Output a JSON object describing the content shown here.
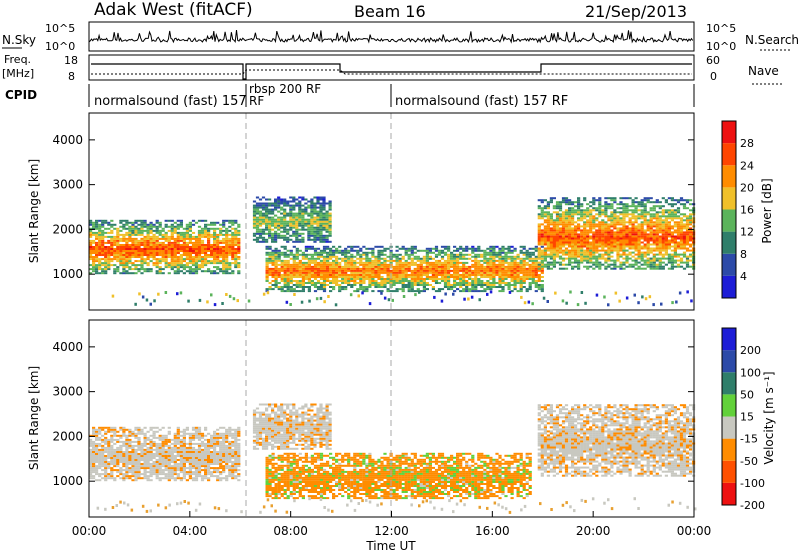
{
  "header": {
    "site": "Adak West (fitACF)",
    "beam": "Beam 16",
    "date": "21/Sep/2013"
  },
  "top_panels": {
    "nsky_label": "N.Sky",
    "nsky_ticks": [
      "10^5",
      "10^0"
    ],
    "nsearch_label": "N.Search",
    "nsearch_ticks": [
      "10^5",
      "10^0"
    ],
    "freq_label": "Freq.",
    "freq_unit": "[MHz]",
    "freq_ticks": [
      "18",
      "8"
    ],
    "nave_label": "Nave",
    "nave_ticks": [
      "60",
      "0"
    ],
    "cpid_label": "CPID",
    "cpid_segments": [
      {
        "label": "normalsound (fast) 157",
        "start_h": 0,
        "end_h": 6.1
      },
      {
        "label": "RF",
        "start_h": 6.1,
        "end_h": 6.3
      },
      {
        "label": "rbsp 200 RF",
        "start_h": 6.3,
        "end_h": 12
      },
      {
        "label": "normalsound (fast) 157 RF",
        "start_h": 12,
        "end_h": 24
      }
    ]
  },
  "chart_data": [
    {
      "type": "heatmap",
      "name": "power",
      "ylabel": "Slant Range [km]",
      "ylim": [
        200,
        4600
      ],
      "yticks": [
        "1000",
        "2000",
        "3000",
        "4000"
      ],
      "colorbar_label": "Power [dB]",
      "colorbar_ticks": [
        "4",
        "8",
        "12",
        "16",
        "20",
        "24",
        "28"
      ],
      "colors": [
        "#1d1dd6",
        "#2c4aa8",
        "#2f7e6a",
        "#5bb35b",
        "#f0c02a",
        "#ff8c00",
        "#ff4500",
        "#ee1111"
      ],
      "regions": [
        {
          "start_h": 0,
          "end_h": 6,
          "range_km": [
            1000,
            2200
          ],
          "level_db": 24
        },
        {
          "start_h": 6.5,
          "end_h": 9.5,
          "range_km": [
            1700,
            2700
          ],
          "level_db": 14
        },
        {
          "start_h": 7,
          "end_h": 18,
          "range_km": [
            600,
            1600
          ],
          "level_db": 22
        },
        {
          "start_h": 17.8,
          "end_h": 24,
          "range_km": [
            1100,
            2700
          ],
          "level_db": 24
        }
      ]
    },
    {
      "type": "heatmap",
      "name": "velocity",
      "ylabel": "Slant Range [km]",
      "ylim": [
        200,
        4600
      ],
      "yticks": [
        "1000",
        "2000",
        "3000",
        "4000"
      ],
      "xlabel": "Time UT",
      "xticks": [
        "00:00",
        "04:00",
        "08:00",
        "12:00",
        "16:00",
        "20:00",
        "00:00"
      ],
      "colorbar_label": "Velocity [m s⁻¹]",
      "colorbar_ticks": [
        "200",
        "100",
        "50",
        "15",
        "-15",
        "-50",
        "-100",
        "-200"
      ],
      "colors": [
        "#1d1dd6",
        "#2c4aa8",
        "#2f7e6a",
        "#62d13a",
        "#c8c8c0",
        "#ff8c00",
        "#ff5000",
        "#ee1111"
      ],
      "regions": [
        {
          "start_h": 0,
          "end_h": 6,
          "range_km": [
            1000,
            2200
          ],
          "velocity": 0
        },
        {
          "start_h": 6.5,
          "end_h": 9.5,
          "range_km": [
            1700,
            2700
          ],
          "velocity": 0
        },
        {
          "start_h": 7,
          "end_h": 17.5,
          "range_km": [
            600,
            1600
          ],
          "velocity": -40
        },
        {
          "start_h": 17.8,
          "end_h": 24,
          "range_km": [
            1100,
            2700
          ],
          "velocity": 0
        }
      ]
    }
  ]
}
